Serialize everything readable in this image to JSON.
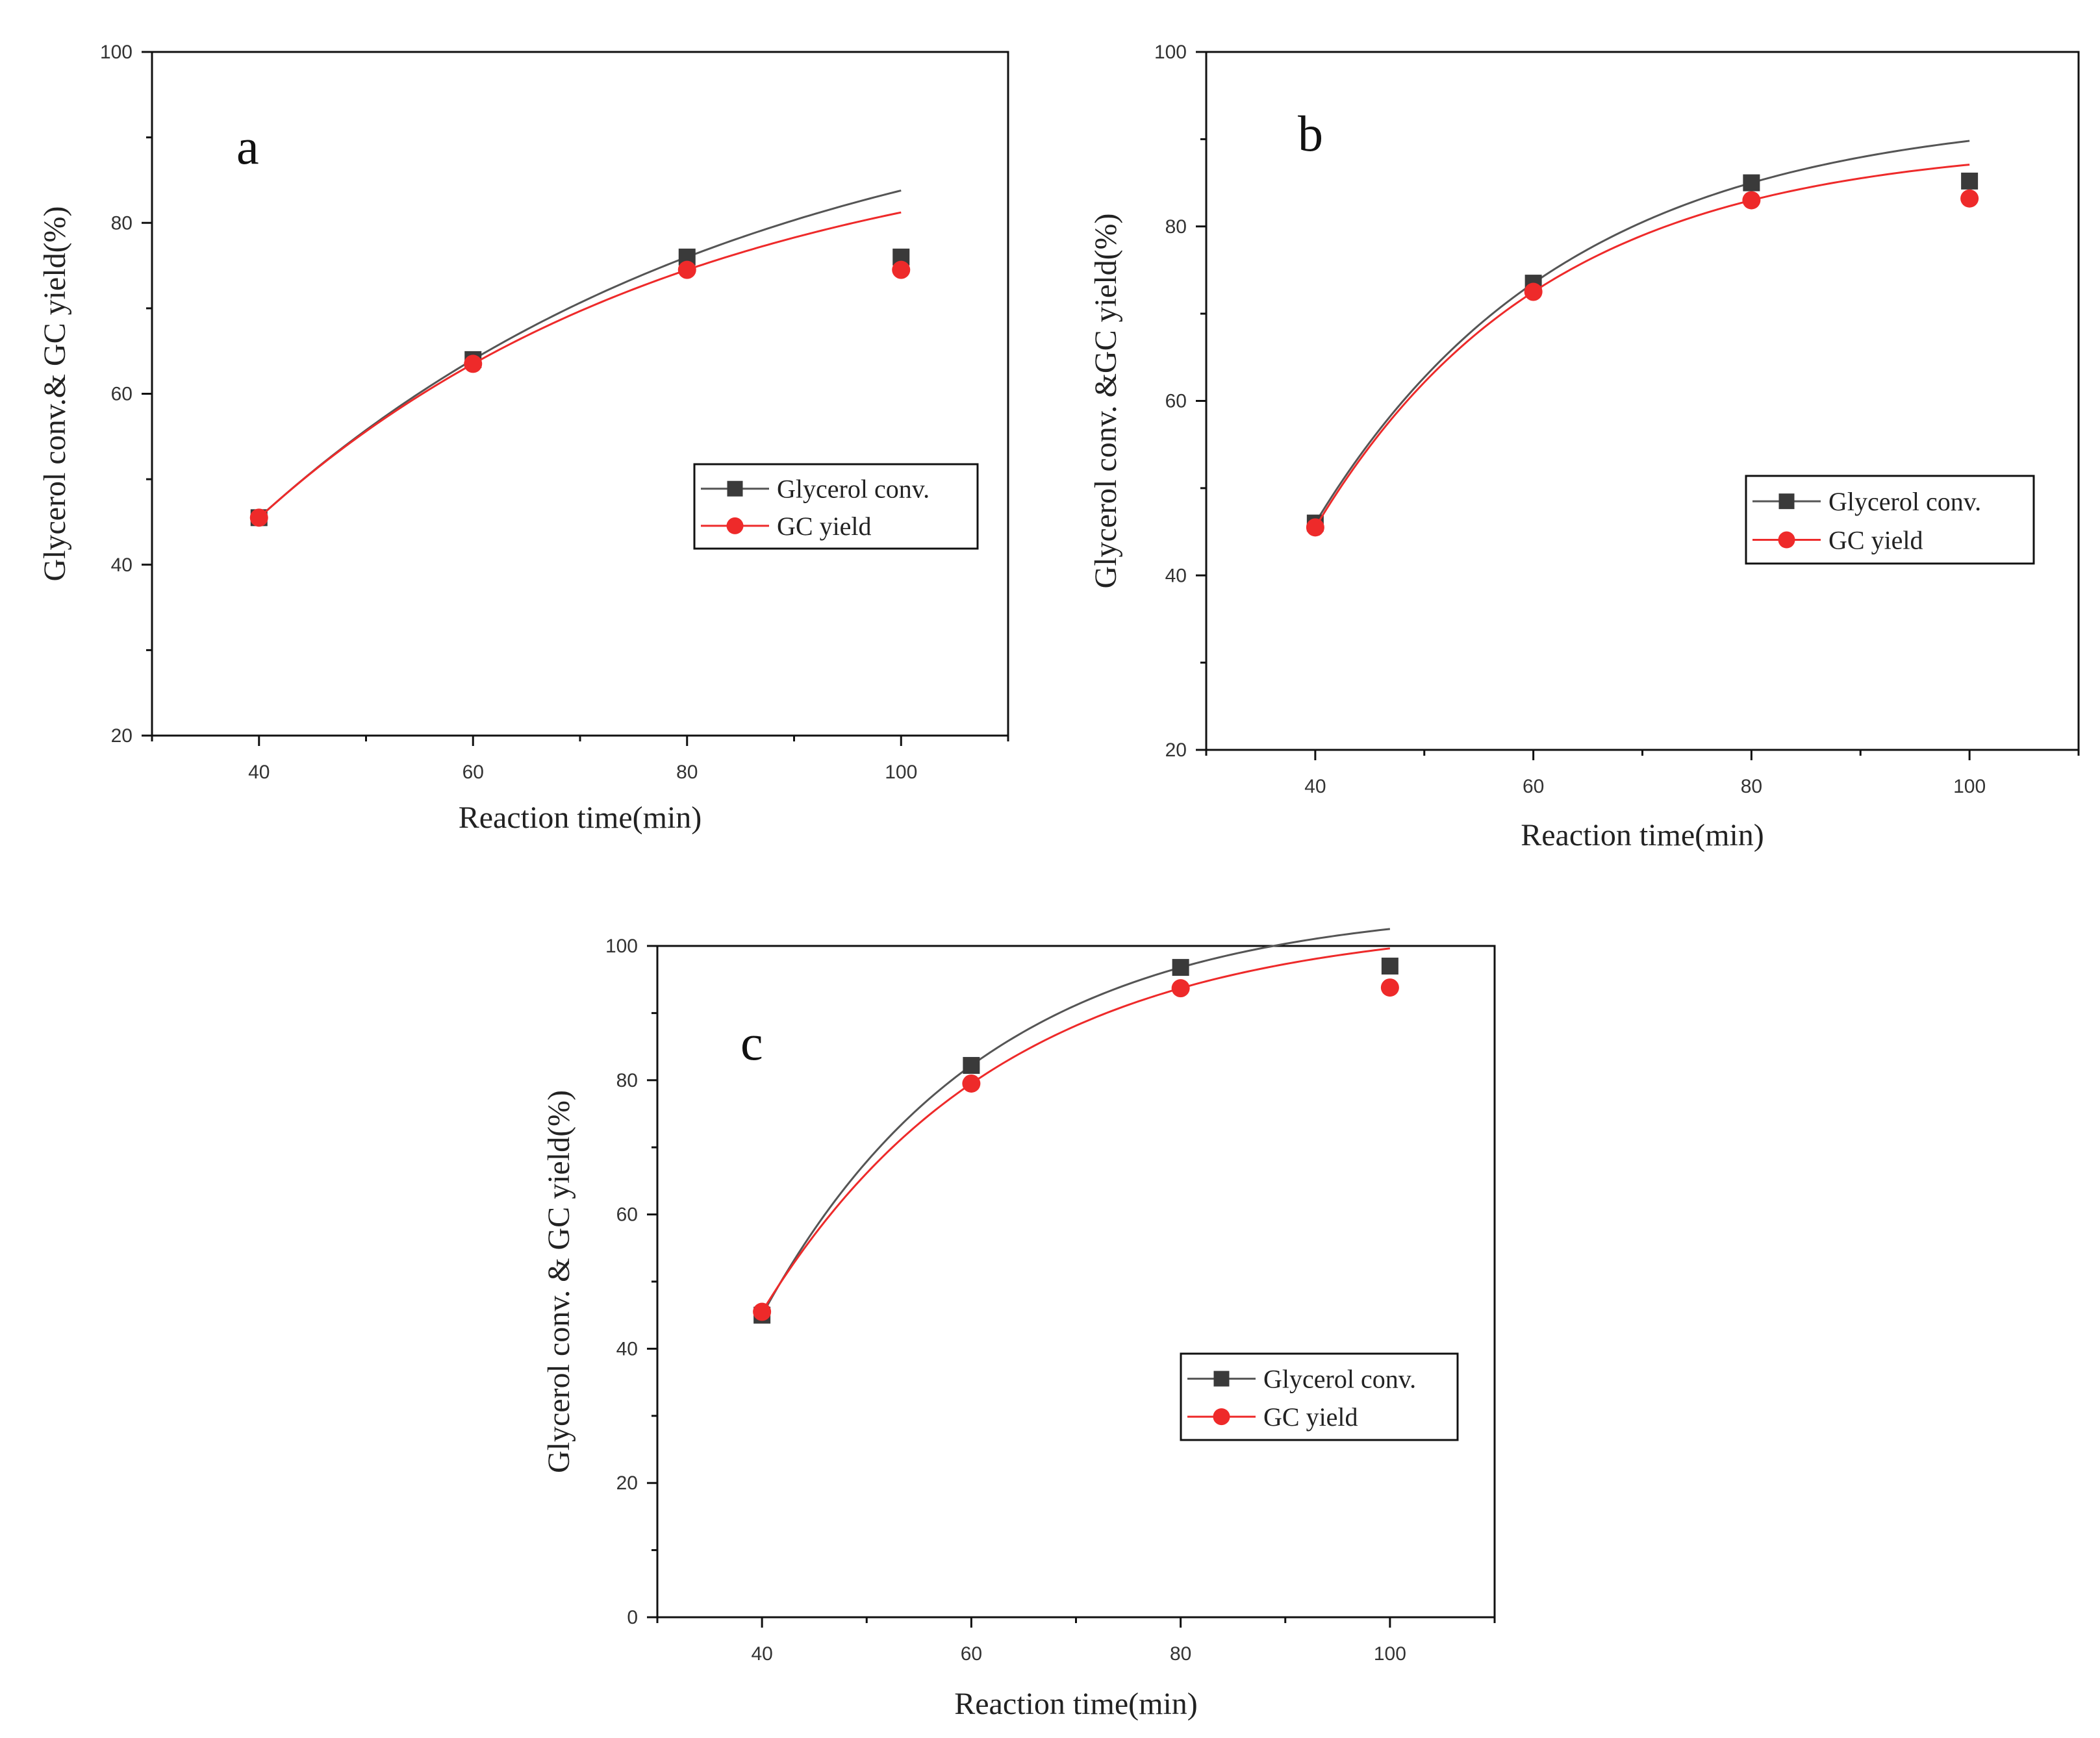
{
  "figure": {
    "colors": {
      "conversion": "#3a3a3a",
      "yield": "#ee2a2a",
      "axis": "#111111",
      "curve_gray": "#555555"
    }
  },
  "chart_data": [
    {
      "panel": "a",
      "type": "line",
      "xlabel": "Reaction time(min)",
      "ylabel": "Glycerol conv.& GC yield(%)",
      "x_ticks": [
        40,
        60,
        80,
        100
      ],
      "y_ticks": [
        20,
        40,
        60,
        80,
        100
      ],
      "xlim": [
        30,
        110
      ],
      "ylim": [
        20,
        100
      ],
      "legend_position": "right",
      "series": [
        {
          "name": "Glycerol conv.",
          "marker": "square",
          "x": [
            40,
            60,
            80,
            100
          ],
          "y": [
            45.5,
            64,
            76,
            76
          ]
        },
        {
          "name": "GC yield",
          "marker": "circle",
          "x": [
            40,
            60,
            80,
            100
          ],
          "y": [
            45.5,
            63.5,
            74.5,
            74.5
          ]
        }
      ]
    },
    {
      "panel": "b",
      "type": "line",
      "xlabel": "Reaction time(min)",
      "ylabel": "Glycerol conv. &GC yield(%)",
      "x_ticks": [
        40,
        60,
        80,
        100
      ],
      "y_ticks": [
        20,
        40,
        60,
        80,
        100
      ],
      "xlim": [
        30,
        110
      ],
      "ylim": [
        20,
        100
      ],
      "legend_position": "right",
      "series": [
        {
          "name": "Glycerol conv.",
          "marker": "square",
          "x": [
            40,
            60,
            80,
            100
          ],
          "y": [
            46,
            73.5,
            85,
            85.2
          ]
        },
        {
          "name": "GC yield",
          "marker": "circle",
          "x": [
            40,
            60,
            80,
            100
          ],
          "y": [
            45.5,
            72.5,
            83,
            83.2
          ]
        }
      ]
    },
    {
      "panel": "c",
      "type": "line",
      "xlabel": "Reaction time(min)",
      "ylabel": "Glycerol conv. & GC yield(%)",
      "x_ticks": [
        40,
        60,
        80,
        100
      ],
      "y_ticks": [
        0,
        20,
        40,
        60,
        80,
        100
      ],
      "xlim": [
        30,
        110
      ],
      "ylim": [
        0,
        100
      ],
      "legend_position": "center-right",
      "series": [
        {
          "name": "Glycerol conv.",
          "marker": "square",
          "x": [
            40,
            60,
            80,
            100
          ],
          "y": [
            45,
            82.2,
            96.8,
            97
          ]
        },
        {
          "name": "GC yield",
          "marker": "circle",
          "x": [
            40,
            60,
            80,
            100
          ],
          "y": [
            45.5,
            79.5,
            93.7,
            93.8
          ]
        }
      ]
    }
  ]
}
